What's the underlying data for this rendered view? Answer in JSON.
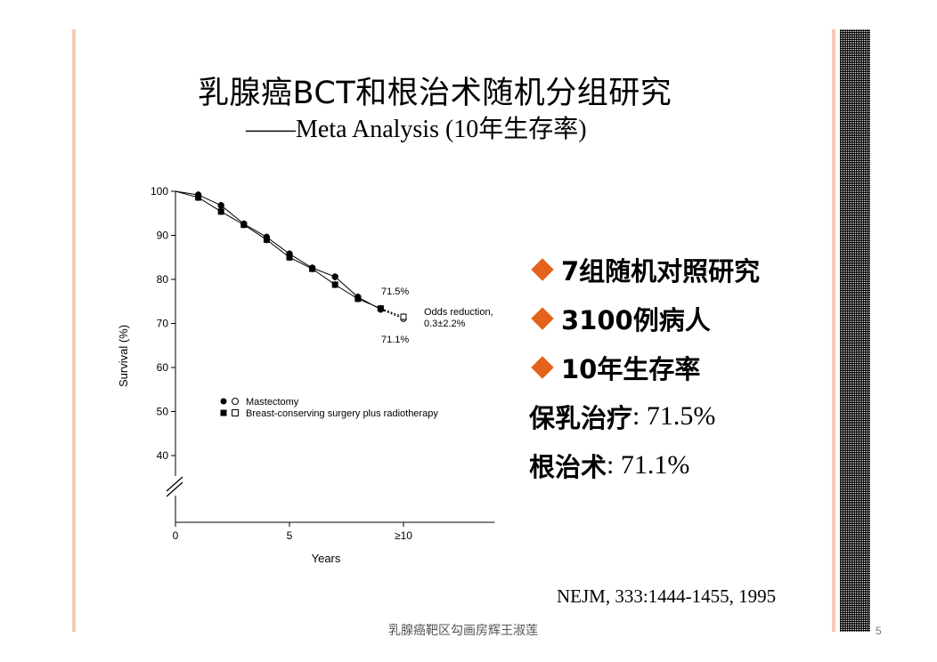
{
  "slide": {
    "title": "乳腺癌BCT和根治术随机分组研究",
    "subtitle": "——Meta Analysis (10年生存率)",
    "bullets": [
      {
        "text": "7组随机对照研究"
      },
      {
        "text": "3100例病人"
      },
      {
        "text": "10年生存率"
      }
    ],
    "results": [
      {
        "label": "保乳治疗",
        "value": ": 71.5%"
      },
      {
        "label": "根治术",
        "value": ": 71.1%"
      }
    ],
    "reference": "NEJM, 333:1444-1455, 1995",
    "footer": "乳腺癌靶区勾画房辉王淑莲",
    "page_number": "5",
    "accent_color": "#e3631a",
    "rule_color": "#f5c9b4"
  },
  "chart_data": {
    "type": "line",
    "xlabel": "Years",
    "ylabel": "Survival (%)",
    "xlim": [
      0,
      14
    ],
    "ylim": [
      40,
      100
    ],
    "axis_break": true,
    "y_ticks": [
      100,
      90,
      80,
      70,
      60,
      50,
      40
    ],
    "x_ticks": [
      {
        "x": 0,
        "label": "0"
      },
      {
        "x": 5,
        "label": "5"
      },
      {
        "x": 10,
        "label": "≥10"
      }
    ],
    "series": [
      {
        "name": "Mastectomy",
        "marker": "circle",
        "x": [
          0,
          1,
          2,
          3,
          4,
          5,
          6,
          7,
          8,
          9,
          10
        ],
        "y": [
          100,
          99.2,
          96.8,
          92.6,
          89.6,
          85.8,
          82.6,
          80.6,
          76.0,
          73.2,
          71.1
        ]
      },
      {
        "name": "Breast-conserving surgery plus radiotherapy",
        "marker": "square",
        "x": [
          0,
          1,
          2,
          3,
          4,
          5,
          6,
          7,
          8,
          9,
          10
        ],
        "y": [
          100,
          98.6,
          95.4,
          92.4,
          89.0,
          85.0,
          82.4,
          78.8,
          75.6,
          73.4,
          71.5
        ]
      }
    ],
    "annotations": {
      "bcs_value": "71.5%",
      "mastectomy_value": "71.1%",
      "odds_line1": "Odds reduction,",
      "odds_line2": "0.3±2.2%"
    },
    "legend_position": "bottom-left"
  }
}
